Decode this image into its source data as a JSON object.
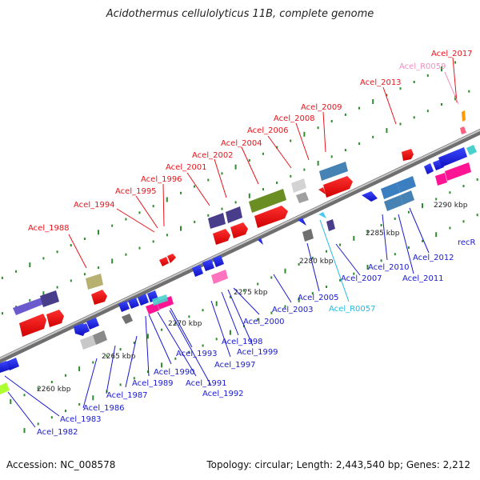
{
  "title": "Acidothermus cellulolyticus 11B, complete genome",
  "accession": "Accession: NC_008578",
  "summary": "Topology: circular; Length: 2,443,540 bp; Genes: 2,212",
  "colors": {
    "red_label": "#e8141c",
    "blue_label": "#1a1ad0",
    "pink_label": "#f090c0",
    "cyan_label": "#22b8e0",
    "backbone": "#8c8c8c"
  },
  "scale_labels": [
    "2260 kbp",
    "2265 kbp",
    "2270 kbp",
    "2275 kbp",
    "2280 kbp",
    "2285 kbp",
    "2290 kbp"
  ],
  "top_labels": [
    {
      "text": "Acel_2017",
      "color": "red"
    },
    {
      "text": "Acel_R0059",
      "color": "pink"
    },
    {
      "text": "Acel_2013",
      "color": "red"
    },
    {
      "text": "Acel_2009",
      "color": "red"
    },
    {
      "text": "Acel_2008",
      "color": "red"
    },
    {
      "text": "Acel_2006",
      "color": "red"
    },
    {
      "text": "Acel_2004",
      "color": "red"
    },
    {
      "text": "Acel_2002",
      "color": "red"
    },
    {
      "text": "Acel_2001",
      "color": "red"
    },
    {
      "text": "Acel_1996",
      "color": "red"
    },
    {
      "text": "Acel_1995",
      "color": "red"
    },
    {
      "text": "Acel_1994",
      "color": "red"
    },
    {
      "text": "Acel_1988",
      "color": "red"
    }
  ],
  "bottom_labels": [
    {
      "text": "recR",
      "color": "blue"
    },
    {
      "text": "Acel_2012",
      "color": "blue"
    },
    {
      "text": "Acel_2011",
      "color": "blue"
    },
    {
      "text": "Acel_2010",
      "color": "blue"
    },
    {
      "text": "Acel_2007",
      "color": "blue"
    },
    {
      "text": "Acel_R0057",
      "color": "cyan"
    },
    {
      "text": "Acel_2005",
      "color": "blue"
    },
    {
      "text": "Acel_2003",
      "color": "blue"
    },
    {
      "text": "Acel_2000",
      "color": "blue"
    },
    {
      "text": "Acel_1999",
      "color": "blue"
    },
    {
      "text": "Acel_1998",
      "color": "blue"
    },
    {
      "text": "Acel_1997",
      "color": "blue"
    },
    {
      "text": "Acel_1993",
      "color": "blue"
    },
    {
      "text": "Acel_1992",
      "color": "blue"
    },
    {
      "text": "Acel_1991",
      "color": "blue"
    },
    {
      "text": "Acel_1990",
      "color": "blue"
    },
    {
      "text": "Acel_1989",
      "color": "blue"
    },
    {
      "text": "Acel_1987",
      "color": "blue"
    },
    {
      "text": "Acel_1986",
      "color": "blue"
    },
    {
      "text": "Acel_1983",
      "color": "blue"
    },
    {
      "text": "Acel_1982",
      "color": "blue"
    }
  ]
}
